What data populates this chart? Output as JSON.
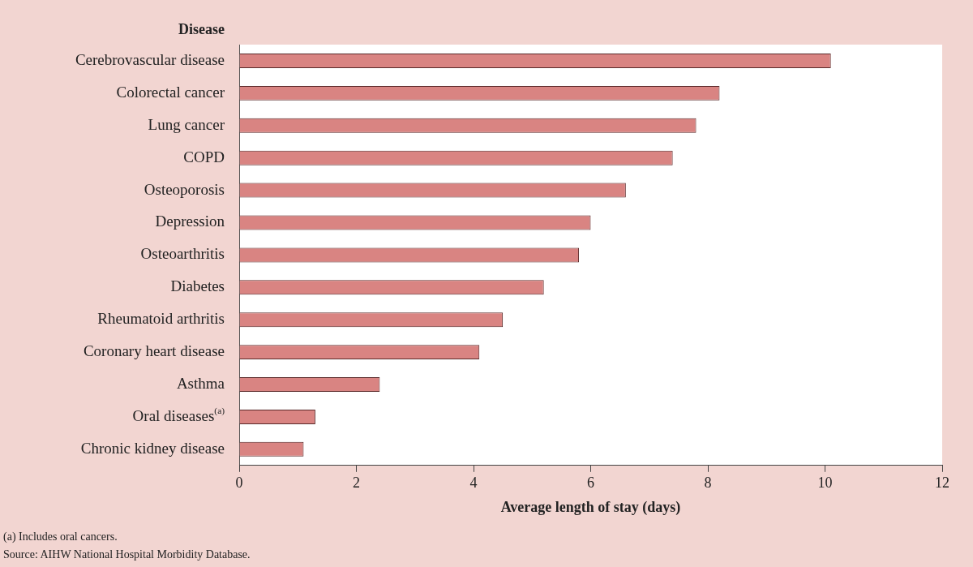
{
  "chart_data": {
    "type": "bar",
    "orientation": "horizontal",
    "ylabel": "Disease",
    "xlabel": "Average length of stay (days)",
    "categories": [
      "Cerebrovascular disease",
      "Colorectal cancer",
      "Lung cancer",
      "COPD",
      "Osteoporosis",
      "Depression",
      "Osteoarthritis",
      "Diabetes",
      "Rheumatoid arthritis",
      "Coronary heart disease",
      "Asthma",
      "Oral diseases$^{(a)}$",
      "Chronic kidney disease"
    ],
    "values": [
      10.1,
      8.2,
      7.8,
      7.4,
      6.6,
      6.0,
      5.8,
      5.2,
      4.5,
      4.1,
      2.4,
      1.3,
      1.1
    ],
    "color": "#d98482",
    "xlim": [
      0,
      12
    ],
    "xticks": [
      0,
      2,
      4,
      6,
      8,
      10,
      12
    ],
    "grid": false,
    "legend": false,
    "annotations": [
      "(a) Includes oral cancers.",
      "Source: AIHW National Hospital Morbidity Database."
    ]
  }
}
